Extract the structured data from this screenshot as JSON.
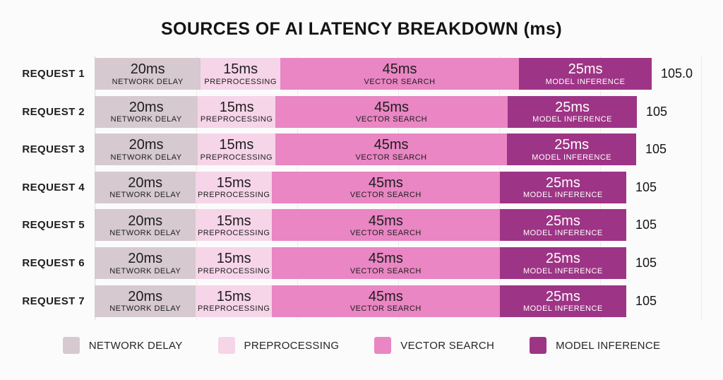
{
  "title": "SOURCES OF AI LATENCY BREAKDOWN (ms)",
  "chart_data": {
    "type": "bar",
    "orientation": "horizontal",
    "stacked": true,
    "unit": "ms",
    "title": "SOURCES OF AI LATENCY BREAKDOWN (ms)",
    "categories": [
      "REQUEST 1",
      "REQUEST 2",
      "REQUEST 3",
      "REQUEST 4",
      "REQUEST 5",
      "REQUEST 6",
      "REQUEST 7"
    ],
    "series": [
      {
        "name": "NETWORK DELAY",
        "value_label": "20ms",
        "values": [
          20,
          20,
          20,
          20,
          20,
          20,
          20
        ],
        "color": "#d6c9d0",
        "text_color": "#1f1d1f"
      },
      {
        "name": "PREPROCESSING",
        "value_label": "15ms",
        "values": [
          15,
          15,
          15,
          15,
          15,
          15,
          15
        ],
        "color": "#f6d5e8",
        "text_color": "#1f1d1f"
      },
      {
        "name": "VECTOR SEARCH",
        "value_label": "45ms",
        "values": [
          45,
          45,
          45,
          45,
          45,
          45,
          45
        ],
        "color": "#e986c3",
        "text_color": "#1f1d1f"
      },
      {
        "name": "MODEL INFERENCE",
        "value_label": "25ms",
        "values": [
          25,
          25,
          25,
          25,
          25,
          25,
          25
        ],
        "color": "#9e3486",
        "text_color": "#ffffff"
      }
    ],
    "total_labels": [
      "105.0",
      "105",
      "105",
      "105",
      "105",
      "105",
      "105"
    ],
    "bar_length_fractions": [
      1.0,
      0.974,
      0.972,
      0.955,
      0.955,
      0.955,
      0.955
    ],
    "xlim": [
      0,
      120
    ],
    "gridlines": true,
    "legend_position": "bottom"
  },
  "legend": {
    "items": [
      {
        "label": "NETWORK DELAY",
        "color": "#d6c9d0"
      },
      {
        "label": "PREPROCESSING",
        "color": "#f6d5e8"
      },
      {
        "label": "VECTOR SEARCH",
        "color": "#e986c3"
      },
      {
        "label": "MODEL INFERENCE",
        "color": "#9e3486"
      }
    ]
  }
}
